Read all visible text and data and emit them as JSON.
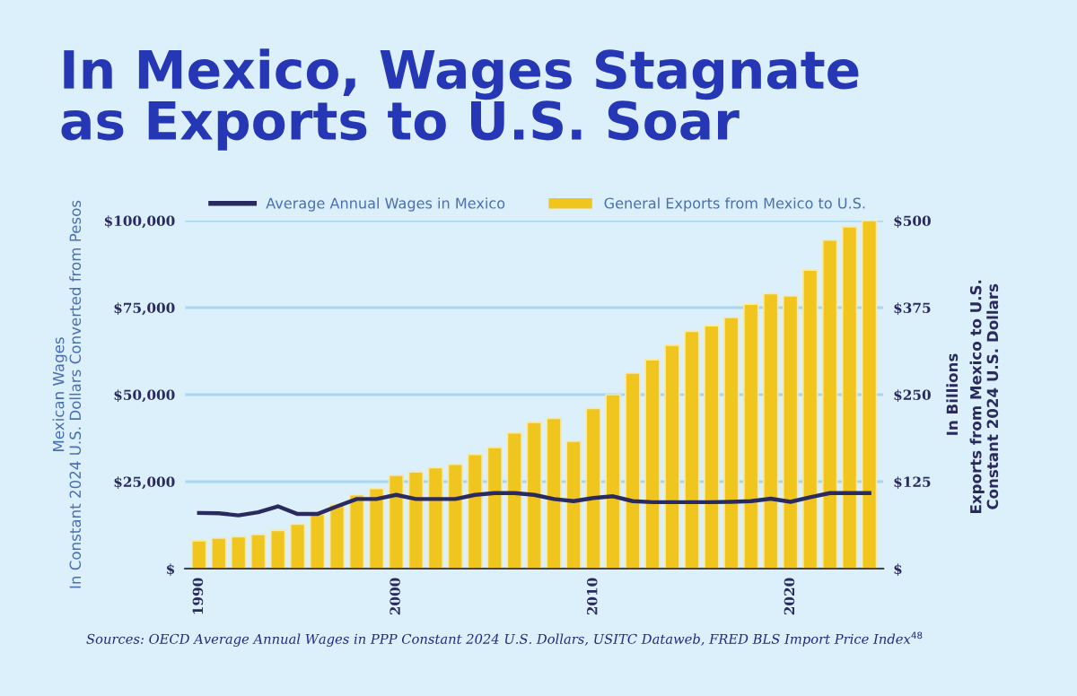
{
  "chart_data": {
    "type": "bar",
    "title": "In Mexico, Wages Stagnate\nas Exports to U.S. Soar",
    "ylabel": "Mexican Wages\nIn Constant 2024 U.S. Dollars Converted from Pesos",
    "y2label": "In Billions",
    "annotations": [
      "Exports from Mexico to U.S.\nConstant 2024 U.S. Dollars",
      "Sources: OECD Average Annual Wages in PPP Constant 2024 U.S. Dollars, USITC Dataweb, FRED BLS Import Price Index$^{48}$"
    ],
    "x": [
      1990,
      1991,
      1992,
      1993,
      1994,
      1995,
      1996,
      1997,
      1998,
      1999,
      2000,
      2001,
      2002,
      2003,
      2004,
      2005,
      2006,
      2007,
      2008,
      2009,
      2010,
      2011,
      2012,
      2013,
      2014,
      2015,
      2016,
      2017,
      2018,
      2019,
      2020,
      2021,
      2022,
      2023,
      2024
    ],
    "xlim": [
      1989.3,
      2024.7
    ],
    "xticks": [
      1990,
      2000,
      2010,
      2020
    ],
    "ylim": [
      0,
      100000
    ],
    "yticks": [
      {
        "value": 0,
        "label": "$"
      },
      {
        "value": 25000,
        "label": "$25,000"
      },
      {
        "value": 50000,
        "label": "$50,000"
      },
      {
        "value": 75000,
        "label": "$75,000"
      },
      {
        "value": 100000,
        "label": "$100,000"
      }
    ],
    "y2lim": [
      0,
      500
    ],
    "y2ticks": [
      {
        "value": 0,
        "label": "$"
      },
      {
        "value": 125,
        "label": "$125"
      },
      {
        "value": 250,
        "label": "$250"
      },
      {
        "value": 375,
        "label": "$375"
      },
      {
        "value": 500,
        "label": "$500"
      }
    ],
    "series": [
      {
        "name": "Average Annual Wages in Mexico",
        "type": "line",
        "axis": "y",
        "color": "#2b2a5e",
        "values": [
          16000,
          15900,
          15300,
          16200,
          17900,
          15700,
          15700,
          17900,
          20000,
          20000,
          21200,
          20000,
          20000,
          20000,
          21200,
          21700,
          21700,
          21200,
          20000,
          19400,
          20300,
          20800,
          19400,
          19100,
          19100,
          19100,
          19100,
          19200,
          19400,
          20100,
          19200,
          20500,
          21700,
          21700,
          21700
        ]
      },
      {
        "name": "General Exports from Mexico to U.S.",
        "axis": "y2",
        "color": "#f0c61e",
        "values": [
          40,
          44,
          46,
          49,
          55,
          64,
          78,
          92,
          106,
          115,
          134,
          139,
          145,
          150,
          164,
          174,
          195,
          210,
          216,
          183,
          230,
          250,
          281,
          300,
          321,
          341,
          349,
          361,
          380,
          395,
          392,
          429,
          472,
          491,
          500
        ]
      }
    ],
    "grid": "y",
    "legend": "top",
    "marker": "none",
    "line_style": "solid"
  }
}
